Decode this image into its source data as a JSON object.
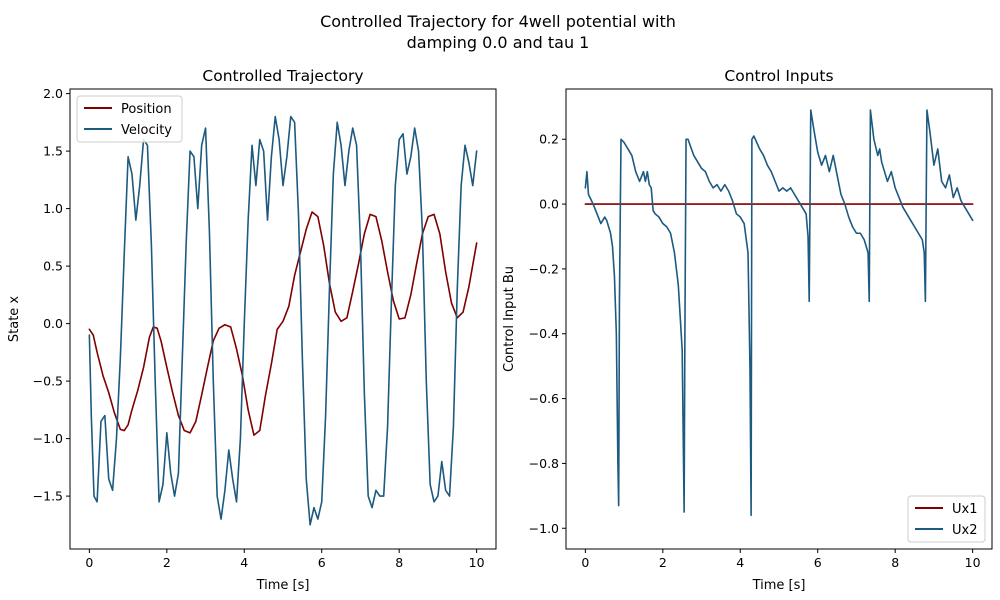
{
  "figure_title_line1": "Controlled Trajectory for 4well potential with",
  "figure_title_line2": "damping 0.0 and tau 1",
  "chart_data": [
    {
      "type": "line",
      "title": "Controlled Trajectory",
      "xlabel": "Time [s]",
      "ylabel": "State x",
      "xlim": [
        -0.5,
        10.5
      ],
      "ylim": [
        -1.96,
        2.04
      ],
      "xticks": [
        0,
        2,
        4,
        6,
        8,
        10
      ],
      "xtick_labels": [
        "0",
        "2",
        "4",
        "6",
        "8",
        "10"
      ],
      "yticks": [
        -1.5,
        -1.0,
        -0.5,
        0.0,
        0.5,
        1.0,
        1.5,
        2.0
      ],
      "ytick_labels": [
        "−1.5",
        "−1.0",
        "−0.5",
        "0.0",
        "0.5",
        "1.0",
        "1.5",
        "2.0"
      ],
      "legend_position": "top-left",
      "series": [
        {
          "name": "Position",
          "color": "#7f0000",
          "x": [
            0,
            0.1,
            0.2,
            0.35,
            0.5,
            0.65,
            0.8,
            0.9,
            1.0,
            1.1,
            1.25,
            1.4,
            1.55,
            1.65,
            1.75,
            1.85,
            2.0,
            2.15,
            2.3,
            2.45,
            2.6,
            2.75,
            2.9,
            3.05,
            3.2,
            3.35,
            3.5,
            3.65,
            3.8,
            3.95,
            4.1,
            4.25,
            4.4,
            4.55,
            4.7,
            4.85,
            5.0,
            5.15,
            5.3,
            5.45,
            5.6,
            5.75,
            5.9,
            6.05,
            6.2,
            6.35,
            6.5,
            6.65,
            6.8,
            6.95,
            7.1,
            7.25,
            7.4,
            7.55,
            7.7,
            7.85,
            8.0,
            8.15,
            8.3,
            8.45,
            8.6,
            8.75,
            8.9,
            9.05,
            9.2,
            9.35,
            9.5,
            9.65,
            9.8,
            10.0
          ],
          "y": [
            -0.05,
            -0.1,
            -0.25,
            -0.45,
            -0.6,
            -0.78,
            -0.92,
            -0.93,
            -0.88,
            -0.75,
            -0.58,
            -0.38,
            -0.12,
            -0.03,
            -0.04,
            -0.15,
            -0.38,
            -0.6,
            -0.8,
            -0.93,
            -0.95,
            -0.85,
            -0.62,
            -0.38,
            -0.15,
            -0.04,
            -0.01,
            -0.03,
            -0.22,
            -0.45,
            -0.75,
            -0.97,
            -0.93,
            -0.62,
            -0.35,
            -0.05,
            0.02,
            0.15,
            0.42,
            0.62,
            0.82,
            0.97,
            0.93,
            0.68,
            0.35,
            0.1,
            0.02,
            0.05,
            0.28,
            0.52,
            0.78,
            0.95,
            0.93,
            0.72,
            0.45,
            0.2,
            0.04,
            0.05,
            0.25,
            0.52,
            0.78,
            0.93,
            0.95,
            0.78,
            0.45,
            0.18,
            0.05,
            0.1,
            0.32,
            0.7
          ]
        },
        {
          "name": "Velocity",
          "color": "#1c5a80",
          "x": [
            0,
            0.05,
            0.12,
            0.2,
            0.3,
            0.4,
            0.5,
            0.6,
            0.7,
            0.8,
            0.9,
            1.0,
            1.1,
            1.2,
            1.3,
            1.4,
            1.5,
            1.6,
            1.7,
            1.8,
            1.9,
            2.0,
            2.1,
            2.2,
            2.3,
            2.4,
            2.5,
            2.6,
            2.7,
            2.8,
            2.9,
            3.0,
            3.1,
            3.2,
            3.3,
            3.4,
            3.5,
            3.6,
            3.7,
            3.8,
            3.9,
            4.0,
            4.1,
            4.2,
            4.3,
            4.4,
            4.5,
            4.6,
            4.7,
            4.8,
            4.9,
            5.0,
            5.1,
            5.2,
            5.3,
            5.4,
            5.5,
            5.6,
            5.7,
            5.8,
            5.9,
            6.0,
            6.1,
            6.2,
            6.3,
            6.4,
            6.5,
            6.6,
            6.7,
            6.8,
            6.9,
            7.0,
            7.1,
            7.2,
            7.3,
            7.4,
            7.5,
            7.6,
            7.7,
            7.8,
            7.9,
            8.0,
            8.1,
            8.2,
            8.3,
            8.4,
            8.5,
            8.6,
            8.7,
            8.8,
            8.9,
            9.0,
            9.1,
            9.2,
            9.3,
            9.4,
            9.5,
            9.6,
            9.7,
            9.8,
            9.9,
            10.0
          ],
          "y": [
            -0.1,
            -0.8,
            -1.5,
            -1.55,
            -0.85,
            -0.8,
            -1.35,
            -1.45,
            -1.0,
            -0.3,
            0.6,
            1.45,
            1.3,
            0.9,
            1.2,
            1.6,
            1.55,
            0.7,
            -0.5,
            -1.55,
            -1.4,
            -0.95,
            -1.3,
            -1.5,
            -1.3,
            -0.3,
            0.7,
            1.5,
            1.45,
            1.0,
            1.55,
            1.7,
            0.8,
            -0.5,
            -1.5,
            -1.7,
            -1.45,
            -1.1,
            -1.35,
            -1.55,
            -1.0,
            0.0,
            0.9,
            1.55,
            1.2,
            1.6,
            1.5,
            0.9,
            1.45,
            1.8,
            1.6,
            1.2,
            1.45,
            1.8,
            1.75,
            0.95,
            -0.3,
            -1.35,
            -1.75,
            -1.6,
            -1.7,
            -1.55,
            -0.8,
            0.3,
            1.3,
            1.75,
            1.55,
            1.2,
            1.5,
            1.7,
            1.55,
            0.7,
            -0.6,
            -1.5,
            -1.6,
            -1.45,
            -1.5,
            -1.5,
            -0.9,
            0.2,
            1.2,
            1.6,
            1.65,
            1.3,
            1.45,
            1.7,
            1.5,
            0.8,
            -0.5,
            -1.4,
            -1.55,
            -1.5,
            -1.2,
            -1.45,
            -1.5,
            -0.9,
            0.3,
            1.2,
            1.55,
            1.4,
            1.2,
            1.5
          ]
        }
      ]
    },
    {
      "type": "line",
      "title": "Control Inputs",
      "xlabel": "Time [s]",
      "ylabel": "Control Input Bu",
      "xlim": [
        -0.5,
        10.5
      ],
      "ylim": [
        -1.064,
        0.355
      ],
      "xticks": [
        0,
        2,
        4,
        6,
        8,
        10
      ],
      "xtick_labels": [
        "0",
        "2",
        "4",
        "6",
        "8",
        "10"
      ],
      "yticks": [
        -1.0,
        -0.8,
        -0.6,
        -0.4,
        -0.2,
        0.0,
        0.2
      ],
      "ytick_labels": [
        "−1.0",
        "−0.8",
        "−0.6",
        "−0.4",
        "−0.2",
        "0.0",
        "0.2"
      ],
      "legend_position": "bottom-right",
      "series": [
        {
          "name": "Ux1",
          "color": "#7f0000",
          "x": [
            0,
            10
          ],
          "y": [
            0.0,
            0.0
          ]
        },
        {
          "name": "Ux2",
          "color": "#1c5a80",
          "x": [
            0,
            0.04,
            0.08,
            0.12,
            0.2,
            0.3,
            0.4,
            0.5,
            0.55,
            0.6,
            0.65,
            0.7,
            0.75,
            0.8,
            0.84,
            0.86,
            0.88,
            0.92,
            1.0,
            1.1,
            1.2,
            1.3,
            1.4,
            1.5,
            1.55,
            1.6,
            1.65,
            1.7,
            1.75,
            1.8,
            1.9,
            2.0,
            2.1,
            2.2,
            2.3,
            2.4,
            2.5,
            2.55,
            2.57,
            2.6,
            2.65,
            2.8,
            2.9,
            3.0,
            3.1,
            3.2,
            3.3,
            3.4,
            3.5,
            3.6,
            3.7,
            3.8,
            3.9,
            4.0,
            4.1,
            4.2,
            4.25,
            4.28,
            4.3,
            4.35,
            4.5,
            4.6,
            4.7,
            4.8,
            4.9,
            5.0,
            5.1,
            5.2,
            5.3,
            5.4,
            5.5,
            5.6,
            5.7,
            5.75,
            5.78,
            5.82,
            5.9,
            6.0,
            6.1,
            6.2,
            6.3,
            6.4,
            6.5,
            6.6,
            6.7,
            6.8,
            6.9,
            7.0,
            7.1,
            7.2,
            7.3,
            7.33,
            7.36,
            7.45,
            7.55,
            7.6,
            7.65,
            7.7,
            7.8,
            7.9,
            8.0,
            8.1,
            8.2,
            8.3,
            8.4,
            8.5,
            8.6,
            8.7,
            8.75,
            8.78,
            8.82,
            8.9,
            9.0,
            9.1,
            9.2,
            9.3,
            9.4,
            9.5,
            9.6,
            9.7,
            9.8,
            9.9,
            10.0
          ],
          "y": [
            0.05,
            0.1,
            0.03,
            0.02,
            0.0,
            -0.03,
            -0.06,
            -0.04,
            -0.05,
            -0.07,
            -0.09,
            -0.13,
            -0.22,
            -0.4,
            -0.8,
            -0.93,
            -0.3,
            0.2,
            0.19,
            0.17,
            0.15,
            0.1,
            0.07,
            0.1,
            0.07,
            0.1,
            0.06,
            0.05,
            -0.02,
            -0.03,
            -0.04,
            -0.06,
            -0.07,
            -0.09,
            -0.15,
            -0.25,
            -0.45,
            -0.95,
            -0.4,
            0.2,
            0.2,
            0.15,
            0.13,
            0.11,
            0.1,
            0.07,
            0.05,
            0.06,
            0.04,
            0.06,
            0.04,
            0.01,
            -0.03,
            -0.04,
            -0.06,
            -0.15,
            -0.5,
            -0.96,
            0.2,
            0.21,
            0.17,
            0.15,
            0.12,
            0.1,
            0.07,
            0.04,
            0.05,
            0.04,
            0.05,
            0.03,
            0.01,
            -0.01,
            -0.03,
            -0.1,
            -0.3,
            0.29,
            0.23,
            0.16,
            0.12,
            0.15,
            0.1,
            0.15,
            0.09,
            0.03,
            0.0,
            -0.04,
            -0.07,
            -0.09,
            -0.09,
            -0.11,
            -0.15,
            -0.3,
            0.29,
            0.2,
            0.15,
            0.17,
            0.13,
            0.11,
            0.07,
            0.1,
            0.05,
            0.02,
            -0.01,
            -0.03,
            -0.05,
            -0.07,
            -0.09,
            -0.11,
            -0.15,
            -0.3,
            0.29,
            0.22,
            0.12,
            0.17,
            0.07,
            0.05,
            0.09,
            0.02,
            0.05,
            0.01,
            -0.01,
            -0.03,
            -0.05
          ]
        }
      ]
    }
  ]
}
